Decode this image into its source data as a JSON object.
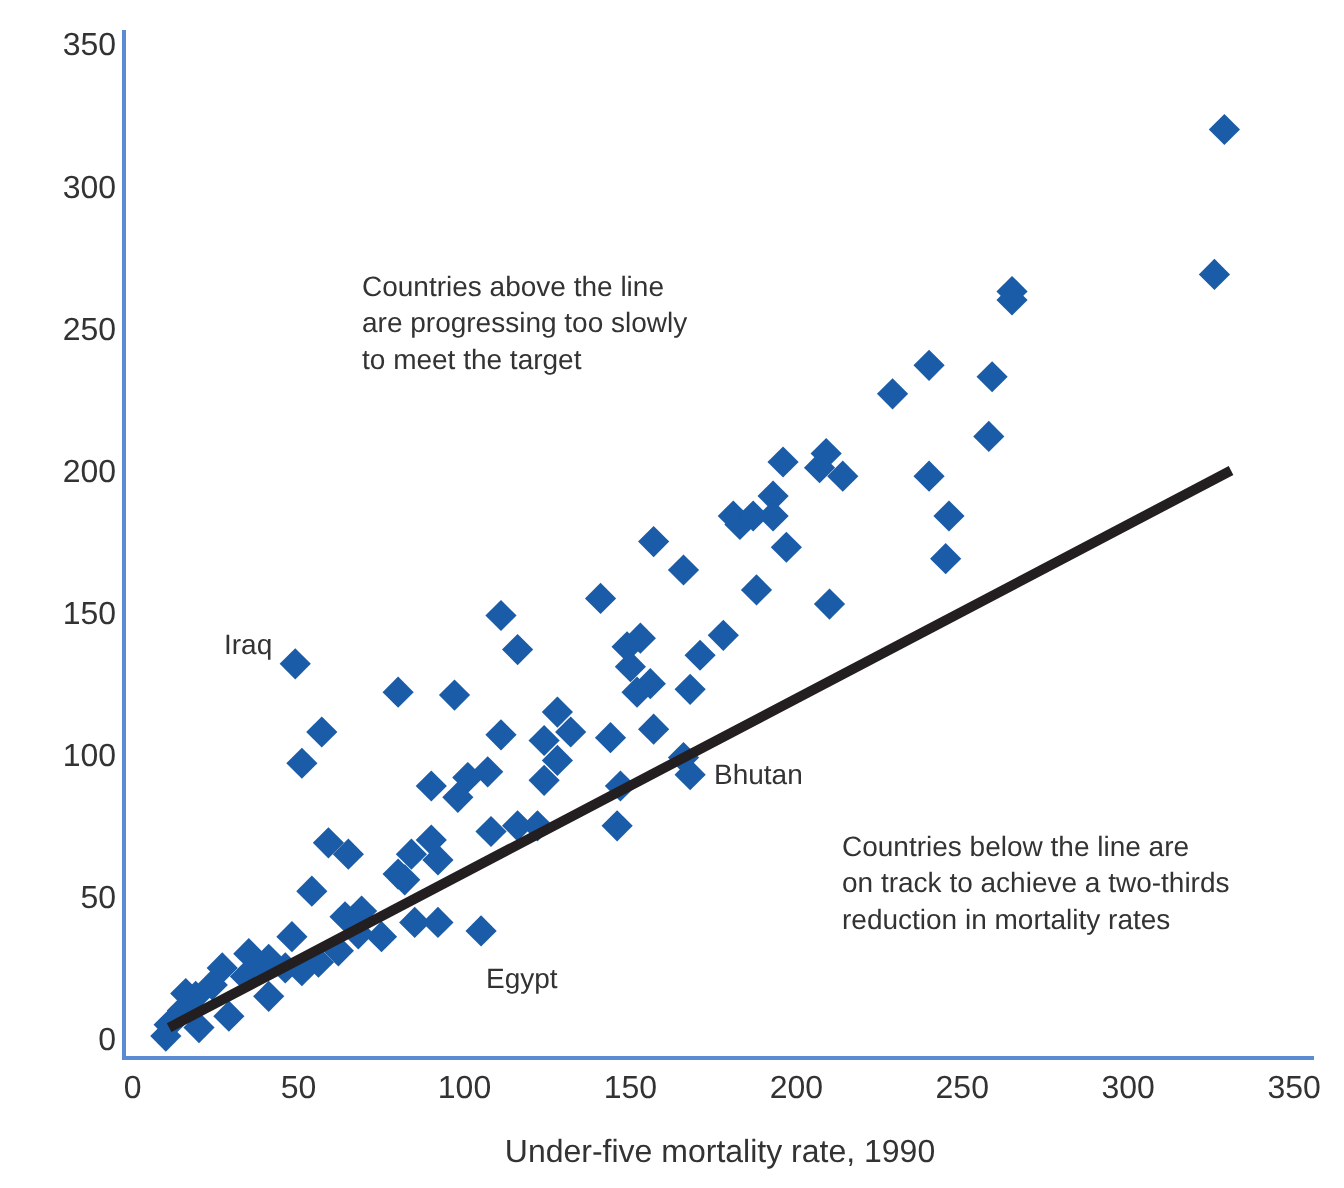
{
  "chart_data": {
    "type": "scatter",
    "xlabel": "Under-five mortality rate, 1990",
    "xlim": [
      -2,
      356
    ],
    "ylim": [
      -6,
      355
    ],
    "xticks": [
      0,
      50,
      100,
      150,
      200,
      250,
      300,
      350
    ],
    "yticks": [
      0,
      50,
      100,
      150,
      200,
      250,
      300,
      350
    ],
    "marker": "diamond",
    "series": [
      {
        "color": "#1a5ca8",
        "x": [
          329,
          326,
          265,
          265,
          240,
          259,
          229,
          258,
          240,
          246,
          245,
          210,
          196,
          209,
          207,
          214,
          193,
          193,
          197,
          181,
          183,
          187,
          188,
          157,
          166,
          141,
          178,
          171,
          153,
          149,
          150,
          156,
          152,
          168,
          157,
          144,
          147,
          146,
          166,
          168,
          111,
          116,
          80,
          97,
          111,
          128,
          132,
          124,
          128,
          124,
          107,
          101,
          98,
          90,
          108,
          116,
          122,
          90,
          92,
          84,
          82,
          80,
          85,
          92,
          105,
          49,
          57,
          51,
          59,
          65,
          54,
          48,
          69,
          64,
          75,
          56,
          51,
          41,
          35,
          27,
          41,
          29,
          19,
          16,
          11,
          10,
          20,
          24,
          34,
          15,
          39,
          68,
          62,
          46
        ],
        "values": [
          320,
          269,
          263,
          260,
          237,
          233,
          227,
          212,
          198,
          184,
          169,
          153,
          203,
          206,
          201,
          198,
          191,
          184,
          173,
          184,
          181,
          184,
          158,
          175,
          165,
          155,
          142,
          135,
          141,
          138,
          131,
          125,
          122,
          123,
          109,
          106,
          89,
          75,
          99,
          93,
          149,
          137,
          122,
          121,
          107,
          115,
          108,
          105,
          98,
          91,
          94,
          92,
          85,
          89,
          73,
          75,
          75,
          70,
          63,
          65,
          56,
          58,
          41,
          41,
          38,
          132,
          108,
          97,
          69,
          65,
          52,
          36,
          45,
          43,
          36,
          27,
          24,
          28,
          30,
          25,
          15,
          8,
          15,
          16,
          5,
          1,
          4,
          19,
          22,
          10,
          25,
          37,
          31,
          25
        ]
      },
      {
        "type": "line",
        "color": "#231f20",
        "marker": "none",
        "line_style": "solid",
        "x": [
          11,
          331
        ],
        "values": [
          4,
          200
        ]
      }
    ],
    "annotations": [
      "Countries above the line\nare progressing too slowly\nto meet the target",
      "Countries below the line are\non track to achieve a two-thirds\nreduction in mortality rates",
      {
        "text": "Iraq",
        "x": 49,
        "y": 132
      },
      {
        "text": "Egypt",
        "x": 105,
        "y": 38
      },
      {
        "text": "Bhutan",
        "x": 168,
        "y": 93
      }
    ]
  }
}
